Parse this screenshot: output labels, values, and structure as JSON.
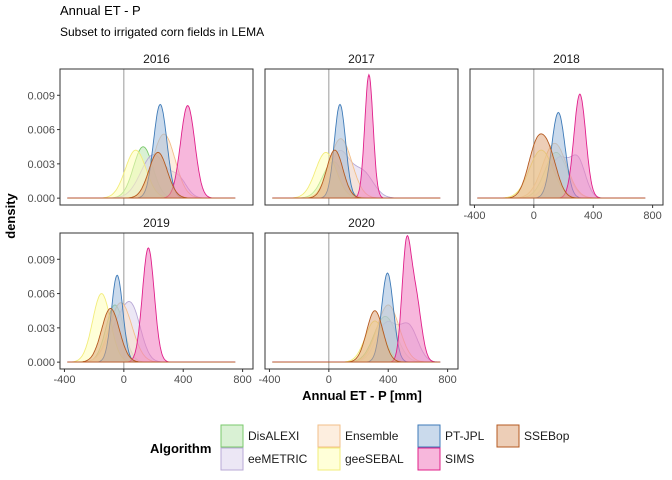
{
  "chart_data": {
    "type": "area",
    "title": "Annual ET - P",
    "subtitle": "Subset to irrigated corn fields in LEMA",
    "xlabel": "Annual ET - P [mm]",
    "ylabel": "density",
    "xlim": [
      -430,
      870
    ],
    "ylim": [
      -0.0006,
      0.0113
    ],
    "x_ticks": [
      -400,
      0,
      400,
      800
    ],
    "x_tick_labels": [
      "-400",
      "0",
      "400",
      "800"
    ],
    "y_ticks": [
      0.0,
      0.003,
      0.006,
      0.009
    ],
    "y_tick_labels": [
      "0.000",
      "0.003",
      "0.006",
      "0.009"
    ],
    "vline": 0,
    "legend_title": "Algorithm",
    "legend_position": "bottom",
    "series_styles": [
      {
        "name": "DisALEXI",
        "fill": "#b9e6b0",
        "stroke": "#7ac96c"
      },
      {
        "name": "eeMETRIC",
        "fill": "#ddd4ec",
        "stroke": "#b8a9d6"
      },
      {
        "name": "Ensemble",
        "fill": "#fbe0c4",
        "stroke": "#f2bf8a"
      },
      {
        "name": "geeSEBAL",
        "fill": "#ffffb8",
        "stroke": "#f2ec7a"
      },
      {
        "name": "PT-JPL",
        "fill": "#9ebcdc",
        "stroke": "#3d7ab8"
      },
      {
        "name": "SIMS",
        "fill": "#f07cc0",
        "stroke": "#e0208a"
      },
      {
        "name": "SSEBop",
        "fill": "#dea57c",
        "stroke": "#b55a20"
      }
    ],
    "panels": [
      {
        "title": "2016",
        "series": [
          {
            "name": "DisALEXI",
            "peaks": [
              [
                130,
                0.0045,
                65
              ]
            ]
          },
          {
            "name": "eeMETRIC",
            "peaks": [
              [
                200,
                0.0038,
                85
              ],
              [
                370,
                0.0015,
                55
              ]
            ]
          },
          {
            "name": "Ensemble",
            "peaks": [
              [
                270,
                0.0056,
                75
              ]
            ]
          },
          {
            "name": "geeSEBAL",
            "peaks": [
              [
                80,
                0.0042,
                70
              ]
            ]
          },
          {
            "name": "PT-JPL",
            "peaks": [
              [
                245,
                0.0082,
                45
              ]
            ]
          },
          {
            "name": "SIMS",
            "peaks": [
              [
                430,
                0.0081,
                48
              ]
            ]
          },
          {
            "name": "SSEBop",
            "peaks": [
              [
                230,
                0.004,
                62
              ]
            ]
          }
        ]
      },
      {
        "title": "2017",
        "series": [
          {
            "name": "DisALEXI",
            "peaks": [
              [
                30,
                0.0032,
                70
              ]
            ]
          },
          {
            "name": "eeMETRIC",
            "peaks": [
              [
                70,
                0.004,
                70
              ],
              [
                230,
                0.0022,
                70
              ]
            ]
          },
          {
            "name": "Ensemble",
            "peaks": [
              [
                80,
                0.0052,
                75
              ]
            ]
          },
          {
            "name": "geeSEBAL",
            "peaks": [
              [
                -20,
                0.004,
                70
              ]
            ]
          },
          {
            "name": "PT-JPL",
            "peaks": [
              [
                75,
                0.0082,
                38
              ]
            ]
          },
          {
            "name": "SIMS",
            "peaks": [
              [
                270,
                0.0108,
                28
              ]
            ]
          },
          {
            "name": "SSEBop",
            "peaks": [
              [
                40,
                0.0042,
                55
              ]
            ]
          }
        ]
      },
      {
        "title": "2018",
        "series": [
          {
            "name": "DisALEXI",
            "peaks": [
              [
                150,
                0.004,
                75
              ]
            ]
          },
          {
            "name": "eeMETRIC",
            "peaks": [
              [
                170,
                0.0035,
                70
              ],
              [
                300,
                0.003,
                50
              ]
            ]
          },
          {
            "name": "Ensemble",
            "peaks": [
              [
                140,
                0.0048,
                80
              ]
            ]
          },
          {
            "name": "geeSEBAL",
            "peaks": [
              [
                50,
                0.0042,
                80
              ]
            ]
          },
          {
            "name": "PT-JPL",
            "peaks": [
              [
                165,
                0.0075,
                45
              ]
            ]
          },
          {
            "name": "SIMS",
            "peaks": [
              [
                310,
                0.0091,
                40
              ]
            ]
          },
          {
            "name": "SSEBop",
            "peaks": [
              [
                20,
                0.0045,
                60
              ],
              [
                110,
                0.003,
                55
              ]
            ]
          }
        ]
      },
      {
        "title": "2019",
        "series": [
          {
            "name": "DisALEXI",
            "peaks": [
              [
                -60,
                0.005,
                60
              ]
            ]
          },
          {
            "name": "eeMETRIC",
            "peaks": [
              [
                -40,
                0.003,
                75
              ],
              [
                60,
                0.0038,
                60
              ]
            ]
          },
          {
            "name": "Ensemble",
            "peaks": [
              [
                -20,
                0.0052,
                75
              ]
            ]
          },
          {
            "name": "geeSEBAL",
            "peaks": [
              [
                -150,
                0.006,
                60
              ]
            ]
          },
          {
            "name": "PT-JPL",
            "peaks": [
              [
                -45,
                0.0076,
                38
              ]
            ]
          },
          {
            "name": "SIMS",
            "peaks": [
              [
                165,
                0.01,
                40
              ]
            ]
          },
          {
            "name": "SSEBop",
            "peaks": [
              [
                -90,
                0.0047,
                60
              ]
            ]
          }
        ]
      },
      {
        "title": "2020",
        "series": [
          {
            "name": "DisALEXI",
            "peaks": [
              [
                380,
                0.004,
                75
              ]
            ]
          },
          {
            "name": "eeMETRIC",
            "peaks": [
              [
                390,
                0.0034,
                70
              ],
              [
                540,
                0.003,
                60
              ]
            ]
          },
          {
            "name": "Ensemble",
            "peaks": [
              [
                400,
                0.005,
                75
              ]
            ]
          },
          {
            "name": "geeSEBAL",
            "peaks": [
              [
                310,
                0.0036,
                65
              ]
            ]
          },
          {
            "name": "PT-JPL",
            "peaks": [
              [
                395,
                0.0078,
                40
              ]
            ]
          },
          {
            "name": "SIMS",
            "peaks": [
              [
                520,
                0.0088,
                30
              ],
              [
                580,
                0.006,
                40
              ]
            ]
          },
          {
            "name": "SSEBop",
            "peaks": [
              [
                310,
                0.0045,
                55
              ]
            ]
          }
        ]
      }
    ]
  }
}
